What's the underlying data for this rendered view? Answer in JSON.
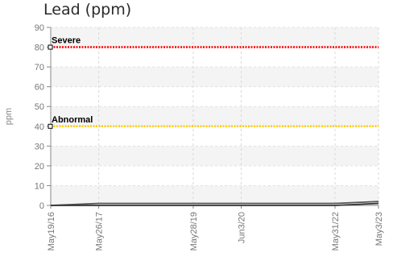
{
  "chart_data": {
    "type": "line",
    "title": "Lead (ppm)",
    "ylabel": "ppm",
    "xlabel": "",
    "ylim": [
      0,
      90
    ],
    "yticks": [
      0,
      10,
      20,
      30,
      40,
      50,
      60,
      70,
      80,
      90
    ],
    "xlim": [
      "2016-05-19",
      "2023-05-03"
    ],
    "xticks": [
      {
        "date": "2016-05-19",
        "label": "May19/16"
      },
      {
        "date": "2017-05-26",
        "label": "May26/17"
      },
      {
        "date": "2019-05-28",
        "label": "May28/19"
      },
      {
        "date": "2020-06-03",
        "label": "Jun3/20"
      },
      {
        "date": "2022-05-31",
        "label": "May31/22"
      },
      {
        "date": "2023-05-03",
        "label": "May3/23"
      }
    ],
    "thresholds": [
      {
        "label": "Severe",
        "value": 80,
        "color": "#ff0000"
      },
      {
        "label": "Abnormal",
        "value": 40,
        "color": "#ffcc00"
      }
    ],
    "series": [
      {
        "color": "#555555",
        "x": [
          "2016-05-19",
          "2017-05-26",
          "2019-05-28",
          "2020-06-03",
          "2022-05-31",
          "2023-05-03"
        ],
        "y": [
          0,
          1,
          1,
          1,
          1,
          2
        ]
      },
      {
        "color": "#333333",
        "x": [
          "2016-05-19",
          "2017-05-26",
          "2019-05-28",
          "2020-06-03",
          "2022-05-31",
          "2023-05-03"
        ],
        "y": [
          0,
          0,
          0,
          0,
          0,
          1
        ]
      }
    ],
    "grid": true,
    "legend": "none"
  }
}
